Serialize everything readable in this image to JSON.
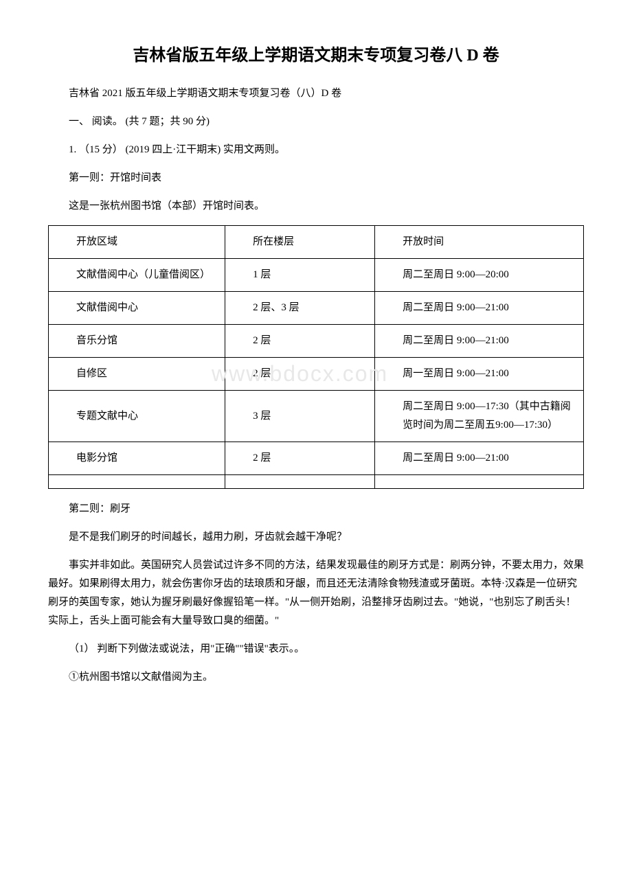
{
  "title": "吉林省版五年级上学期语文期末专项复习卷八 D 卷",
  "subtitle": "吉林省 2021 版五年级上学期语文期末专项复习卷（八）D 卷",
  "section_heading": "一、 阅读。  (共 7 题；共 90 分)",
  "question_intro": "1.  （15 分） (2019 四上·江干期末) 实用文两则。",
  "part1_title": "第一则：开馆时间表",
  "part1_desc": "这是一张杭州图书馆（本部）开馆时间表。",
  "table": {
    "headers": [
      "开放区域",
      "所在楼层",
      "开放时间"
    ],
    "rows": [
      [
        "文献借阅中心（儿童借阅区）",
        "1 层",
        "周二至周日 9:00—20:00"
      ],
      [
        "文献借阅中心",
        "2 层、3 层",
        "周二至周日 9:00—21:00"
      ],
      [
        "音乐分馆",
        "2 层",
        "周二至周日 9:00—21:00"
      ],
      [
        "自修区",
        "2 层",
        "周一至周日 9:00—21:00"
      ],
      [
        "专题文献中心",
        "3 层",
        "周二至周日 9:00—17:30（其中古籍阅览时间为周二至周五9:00—17:30）"
      ],
      [
        "电影分馆",
        "2 层",
        "周二至周日 9:00—21:00"
      ]
    ]
  },
  "part2_title": "第二则：刷牙",
  "part2_q": "是不是我们刷牙的时间越长，越用力刷，牙齿就会越干净呢？",
  "part2_text": "事实并非如此。英国研究人员尝试过许多不同的方法，结果发现最佳的刷牙方式是：刷两分钟，不要太用力，效果最好。如果刷得太用力，就会伤害你牙齿的珐琅质和牙龈，而且还无法清除食物残渣或牙菌斑。本特·汉森是一位研究刷牙的英国专家，她认为握牙刷最好像握铅笔一样。\"从一侧开始刷，沿整排牙齿刷过去。\"她说，\"也别忘了刷舌头！实际上，舌头上面可能会有大量导致口臭的细菌。\"",
  "sub_q": "（1） 判断下列做法或说法，用\"正确\"\"错误\"表示。。",
  "sub_q1": "①杭州图书馆以文献借阅为主。",
  "watermark": "www.bdocx.com"
}
